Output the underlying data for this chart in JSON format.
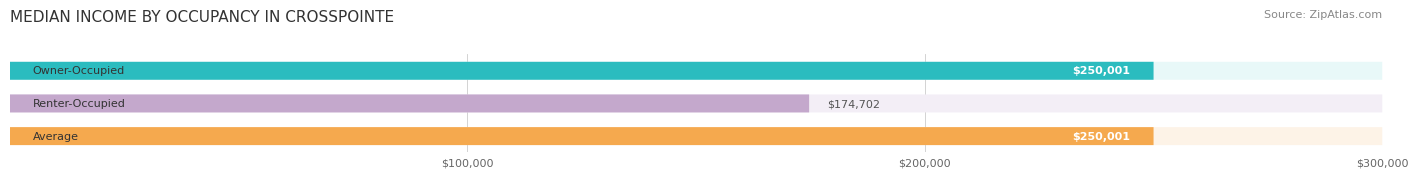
{
  "title": "MEDIAN INCOME BY OCCUPANCY IN CROSSPOINTE",
  "source": "Source: ZipAtlas.com",
  "categories": [
    "Owner-Occupied",
    "Renter-Occupied",
    "Average"
  ],
  "values": [
    250001,
    174702,
    250001
  ],
  "bar_colors": [
    "#2bbcbf",
    "#c4a8cc",
    "#f5a94e"
  ],
  "bar_bg_colors": [
    "#e8f8f8",
    "#f3eef6",
    "#fdf3e7"
  ],
  "value_labels": [
    "$250,001",
    "$174,702",
    "$250,001"
  ],
  "label_inside": [
    true,
    false,
    true
  ],
  "xmin": 0,
  "xmax": 300000,
  "xticks": [
    100000,
    200000,
    300000
  ],
  "xticklabels": [
    "$100,000",
    "$200,000",
    "$300,000"
  ],
  "title_fontsize": 11,
  "source_fontsize": 8,
  "label_fontsize": 8,
  "tick_fontsize": 8,
  "bar_height": 0.55,
  "background_color": "#ffffff"
}
